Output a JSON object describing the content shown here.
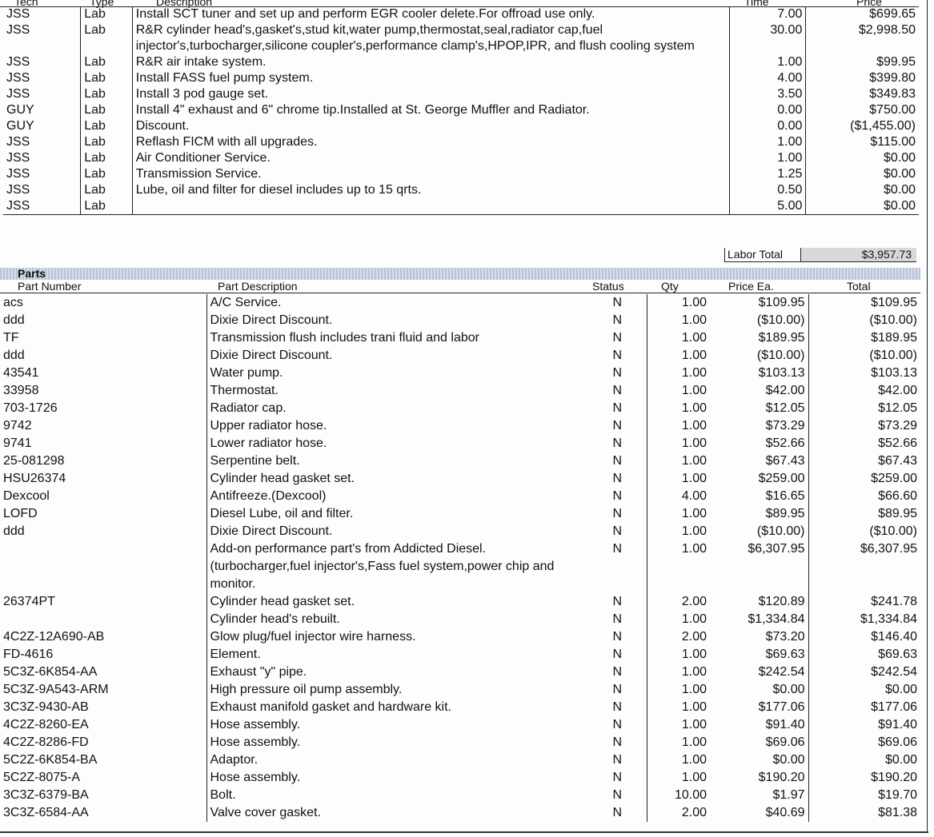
{
  "labor": {
    "headers": {
      "tech": "Tech",
      "type": "Type",
      "description": "Description",
      "time": "Time",
      "price": "Price"
    },
    "rows": [
      {
        "tech": "JSS",
        "type": "Lab",
        "description": "Install SCT tuner and set up and perform EGR cooler delete.For offroad use only.",
        "time": "7.00",
        "price": "$699.65"
      },
      {
        "tech": "JSS",
        "type": "Lab",
        "description": "R&R cylinder head's,gasket's,stud kit,water pump,thermostat,seal,radiator cap,fuel injector's,turbocharger,silicone coupler's,performance clamp's,HPOP,IPR, and flush cooling system",
        "time": "30.00",
        "price": "$2,998.50"
      },
      {
        "tech": "JSS",
        "type": "Lab",
        "description": "R&R air intake system.",
        "time": "1.00",
        "price": "$99.95"
      },
      {
        "tech": "JSS",
        "type": "Lab",
        "description": "Install FASS fuel pump system.",
        "time": "4.00",
        "price": "$399.80"
      },
      {
        "tech": "JSS",
        "type": "Lab",
        "description": "Install 3 pod gauge set.",
        "time": "3.50",
        "price": "$349.83"
      },
      {
        "tech": "GUY",
        "type": "Lab",
        "description": "Install 4\" exhaust and 6\" chrome tip.Installed at St. George Muffler and Radiator.",
        "time": "0.00",
        "price": "$750.00"
      },
      {
        "tech": "GUY",
        "type": "Lab",
        "description": "Discount.",
        "time": "0.00",
        "price": "($1,455.00)"
      },
      {
        "tech": "JSS",
        "type": "Lab",
        "description": "Reflash FICM with all upgrades.",
        "time": "1.00",
        "price": "$115.00"
      },
      {
        "tech": "JSS",
        "type": "Lab",
        "description": "Air Conditioner Service.",
        "time": "1.00",
        "price": "$0.00"
      },
      {
        "tech": "JSS",
        "type": "Lab",
        "description": "Transmission Service.",
        "time": "1.25",
        "price": "$0.00"
      },
      {
        "tech": "JSS",
        "type": "Lab",
        "description": "Lube, oil and filter for diesel includes up to 15 qrts.",
        "time": "0.50",
        "price": "$0.00"
      },
      {
        "tech": "JSS",
        "type": "Lab",
        "description": "",
        "time": "5.00",
        "price": "$0.00"
      }
    ],
    "total_label": "Labor Total",
    "total_value": "$3,957.73"
  },
  "parts": {
    "section_title": "Parts",
    "headers": {
      "part_number": "Part Number",
      "description": "Part Description",
      "status": "Status",
      "qty": "Qty",
      "price_ea": "Price Ea.",
      "total": "Total"
    },
    "rows": [
      {
        "part_number": "acs",
        "description": "A/C Service.",
        "status": "N",
        "qty": "1.00",
        "price_ea": "$109.95",
        "total": "$109.95"
      },
      {
        "part_number": "ddd",
        "description": "Dixie Direct Discount.",
        "status": "N",
        "qty": "1.00",
        "price_ea": "($10.00)",
        "total": "($10.00)"
      },
      {
        "part_number": "TF",
        "description": "Transmission flush includes trani fluid and labor",
        "status": "N",
        "qty": "1.00",
        "price_ea": "$189.95",
        "total": "$189.95"
      },
      {
        "part_number": "ddd",
        "description": "Dixie Direct Discount.",
        "status": "N",
        "qty": "1.00",
        "price_ea": "($10.00)",
        "total": "($10.00)"
      },
      {
        "part_number": "43541",
        "description": "Water pump.",
        "status": "N",
        "qty": "1.00",
        "price_ea": "$103.13",
        "total": "$103.13"
      },
      {
        "part_number": "33958",
        "description": "Thermostat.",
        "status": "N",
        "qty": "1.00",
        "price_ea": "$42.00",
        "total": "$42.00"
      },
      {
        "part_number": "703-1726",
        "description": "Radiator cap.",
        "status": "N",
        "qty": "1.00",
        "price_ea": "$12.05",
        "total": "$12.05"
      },
      {
        "part_number": "9742",
        "description": "Upper radiator hose.",
        "status": "N",
        "qty": "1.00",
        "price_ea": "$73.29",
        "total": "$73.29"
      },
      {
        "part_number": "9741",
        "description": "Lower radiator hose.",
        "status": "N",
        "qty": "1.00",
        "price_ea": "$52.66",
        "total": "$52.66"
      },
      {
        "part_number": "25-081298",
        "description": "Serpentine belt.",
        "status": "N",
        "qty": "1.00",
        "price_ea": "$67.43",
        "total": "$67.43"
      },
      {
        "part_number": "HSU26374",
        "description": "Cylinder head gasket set.",
        "status": "N",
        "qty": "1.00",
        "price_ea": "$259.00",
        "total": "$259.00"
      },
      {
        "part_number": "Dexcool",
        "description": "Antifreeze.(Dexcool)",
        "status": "N",
        "qty": "4.00",
        "price_ea": "$16.65",
        "total": "$66.60"
      },
      {
        "part_number": "LOFD",
        "description": "Diesel Lube, oil and filter.",
        "status": "N",
        "qty": "1.00",
        "price_ea": "$89.95",
        "total": "$89.95"
      },
      {
        "part_number": "ddd",
        "description": "Dixie Direct Discount.",
        "status": "N",
        "qty": "1.00",
        "price_ea": "($10.00)",
        "total": "($10.00)"
      },
      {
        "part_number": "",
        "description": "Add-on performance part's from Addicted Diesel.(turbocharger,fuel injector's,Fass fuel system,power chip and monitor.",
        "status": "N",
        "qty": "1.00",
        "price_ea": "$6,307.95",
        "total": "$6,307.95"
      },
      {
        "part_number": "26374PT",
        "description": "Cylinder head gasket set.",
        "status": "N",
        "qty": "2.00",
        "price_ea": "$120.89",
        "total": "$241.78"
      },
      {
        "part_number": "",
        "description": "Cylinder head's rebuilt.",
        "status": "N",
        "qty": "1.00",
        "price_ea": "$1,334.84",
        "total": "$1,334.84"
      },
      {
        "part_number": "4C2Z-12A690-AB",
        "description": "Glow plug/fuel injector wire harness.",
        "status": "N",
        "qty": "2.00",
        "price_ea": "$73.20",
        "total": "$146.40"
      },
      {
        "part_number": "FD-4616",
        "description": "Element.",
        "status": "N",
        "qty": "1.00",
        "price_ea": "$69.63",
        "total": "$69.63"
      },
      {
        "part_number": "5C3Z-6K854-AA",
        "description": "Exhaust \"y\" pipe.",
        "status": "N",
        "qty": "1.00",
        "price_ea": "$242.54",
        "total": "$242.54"
      },
      {
        "part_number": "5C3Z-9A543-ARM",
        "description": "High pressure oil pump assembly.",
        "status": "N",
        "qty": "1.00",
        "price_ea": "$0.00",
        "total": "$0.00"
      },
      {
        "part_number": "3C3Z-9430-AB",
        "description": "Exhaust manifold gasket and hardware kit.",
        "status": "N",
        "qty": "1.00",
        "price_ea": "$177.06",
        "total": "$177.06"
      },
      {
        "part_number": "4C2Z-8260-EA",
        "description": "Hose assembly.",
        "status": "N",
        "qty": "1.00",
        "price_ea": "$91.40",
        "total": "$91.40"
      },
      {
        "part_number": "4C2Z-8286-FD",
        "description": "Hose assembly.",
        "status": "N",
        "qty": "1.00",
        "price_ea": "$69.06",
        "total": "$69.06"
      },
      {
        "part_number": "5C2Z-6K854-BA",
        "description": "Adaptor.",
        "status": "N",
        "qty": "1.00",
        "price_ea": "$0.00",
        "total": "$0.00"
      },
      {
        "part_number": "5C2Z-8075-A",
        "description": "Hose assembly.",
        "status": "N",
        "qty": "1.00",
        "price_ea": "$190.20",
        "total": "$190.20"
      },
      {
        "part_number": "3C3Z-6379-BA",
        "description": "Bolt.",
        "status": "N",
        "qty": "10.00",
        "price_ea": "$1.97",
        "total": "$19.70"
      },
      {
        "part_number": "3C3Z-6584-AA",
        "description": "Valve cover gasket.",
        "status": "N",
        "qty": "2.00",
        "price_ea": "$40.69",
        "total": "$81.38"
      }
    ]
  }
}
